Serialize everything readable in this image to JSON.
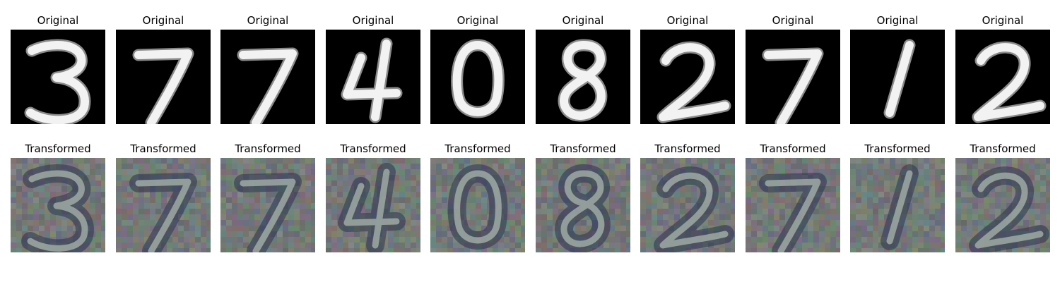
{
  "rows": [
    {
      "title": "Original",
      "style": "original",
      "background": "#000000",
      "digits": [
        "3",
        "7",
        "7",
        "4",
        "0",
        "8",
        "2",
        "7",
        "1",
        "2"
      ]
    },
    {
      "title": "Transformed",
      "style": "transformed",
      "background": "#6f7771",
      "digits": [
        "3",
        "7",
        "7",
        "4",
        "0",
        "8",
        "2",
        "7",
        "1",
        "2"
      ]
    }
  ]
}
